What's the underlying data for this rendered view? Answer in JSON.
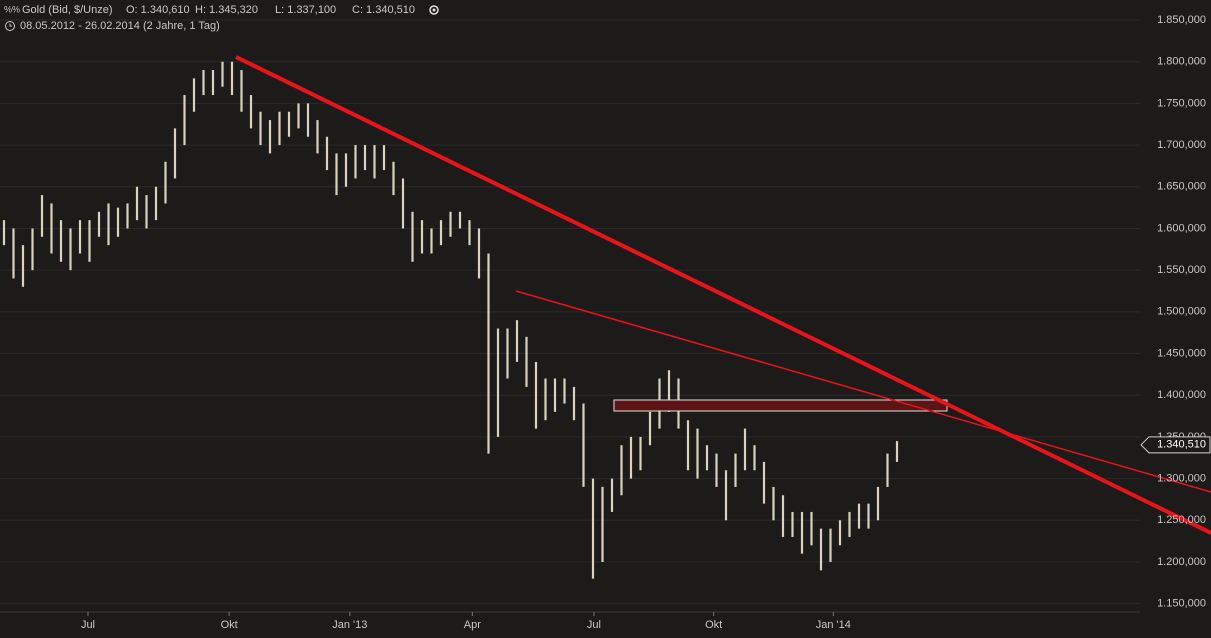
{
  "chart_data": {
    "type": "range",
    "title": "Gold (Bid, $/Unze)",
    "ohlc_labels": [
      "O: 1.340,610",
      "H: 1.345,320",
      "L: 1.337,100",
      "C: 1.340,510"
    ],
    "subtitle": "08.05.2012 - 26.02.2014 (2 Jahre, 1 Tag)",
    "color": "#d8d2bf",
    "high": [
      1610000,
      1600000,
      1580000,
      1600000,
      1640000,
      1630000,
      1610000,
      1600000,
      1610000,
      1610000,
      1620000,
      1630000,
      1625000,
      1630000,
      1650000,
      1640000,
      1650000,
      1680000,
      1720000,
      1760000,
      1780000,
      1790000,
      1790000,
      1800000,
      1800000,
      1790000,
      1760000,
      1740000,
      1730000,
      1740000,
      1740000,
      1750000,
      1750000,
      1730000,
      1710000,
      1690000,
      1690000,
      1700000,
      1700000,
      1700000,
      1700000,
      1680000,
      1660000,
      1620000,
      1610000,
      1600000,
      1610000,
      1620000,
      1620000,
      1610000,
      1600000,
      1570000,
      1480000,
      1480000,
      1490000,
      1470000,
      1440000,
      1420000,
      1420000,
      1420000,
      1410000,
      1390000,
      1300000,
      1290000,
      1300000,
      1340000,
      1350000,
      1350000,
      1380000,
      1420000,
      1430000,
      1420000,
      1370000,
      1360000,
      1340000,
      1330000,
      1310000,
      1330000,
      1360000,
      1340000,
      1320000,
      1290000,
      1280000,
      1260000,
      1260000,
      1260000,
      1240000,
      1240000,
      1250000,
      1260000,
      1270000,
      1270000,
      1290000,
      1330000,
      1345000
    ],
    "low": [
      1580000,
      1540000,
      1530000,
      1550000,
      1590000,
      1570000,
      1560000,
      1550000,
      1570000,
      1560000,
      1590000,
      1580000,
      1590000,
      1600000,
      1610000,
      1600000,
      1610000,
      1630000,
      1660000,
      1700000,
      1740000,
      1760000,
      1760000,
      1770000,
      1760000,
      1740000,
      1720000,
      1700000,
      1690000,
      1700000,
      1710000,
      1720000,
      1710000,
      1690000,
      1670000,
      1640000,
      1650000,
      1660000,
      1670000,
      1660000,
      1670000,
      1640000,
      1600000,
      1560000,
      1570000,
      1570000,
      1580000,
      1590000,
      1600000,
      1580000,
      1540000,
      1330000,
      1350000,
      1420000,
      1440000,
      1410000,
      1360000,
      1370000,
      1380000,
      1390000,
      1370000,
      1290000,
      1180000,
      1200000,
      1260000,
      1280000,
      1300000,
      1310000,
      1340000,
      1360000,
      1380000,
      1360000,
      1310000,
      1300000,
      1310000,
      1290000,
      1250000,
      1290000,
      1310000,
      1310000,
      1270000,
      1250000,
      1230000,
      1230000,
      1210000,
      1220000,
      1190000,
      1200000,
      1220000,
      1230000,
      1240000,
      1240000,
      1250000,
      1290000,
      1320000
    ],
    "xticks": [
      {
        "value": 8.84,
        "label": "Jul"
      },
      {
        "value": 23.7,
        "label": "Okt"
      },
      {
        "value": 36.4,
        "label": "Jan '13"
      },
      {
        "value": 49.3,
        "label": "Apr"
      },
      {
        "value": 62.1,
        "label": "Jul"
      },
      {
        "value": 74.7,
        "label": "Okt"
      },
      {
        "value": 87.3,
        "label": "Jan '14"
      }
    ],
    "ylim": [
      1140000,
      1874000
    ],
    "yticks": [
      {
        "value": 1150000,
        "label": "1.150,000"
      },
      {
        "value": 1200000,
        "label": "1.200,000"
      },
      {
        "value": 1250000,
        "label": "1.250,000"
      },
      {
        "value": 1300000,
        "label": "1.300,000"
      },
      {
        "value": 1350000,
        "label": "1.350,000"
      },
      {
        "value": 1400000,
        "label": "1.400,000"
      },
      {
        "value": 1450000,
        "label": "1.450,000"
      },
      {
        "value": 1500000,
        "label": "1.500,000"
      },
      {
        "value": 1550000,
        "label": "1.550,000"
      },
      {
        "value": 1600000,
        "label": "1.600,000"
      },
      {
        "value": 1650000,
        "label": "1.650,000"
      },
      {
        "value": 1700000,
        "label": "1.700,000"
      },
      {
        "value": 1750000,
        "label": "1.750,000"
      },
      {
        "value": 1800000,
        "label": "1.800,000"
      },
      {
        "value": 1850000,
        "label": "1.850,000"
      }
    ],
    "last_price": {
      "value": 1340510,
      "label": "1.340,510"
    },
    "grid": true
  }
}
